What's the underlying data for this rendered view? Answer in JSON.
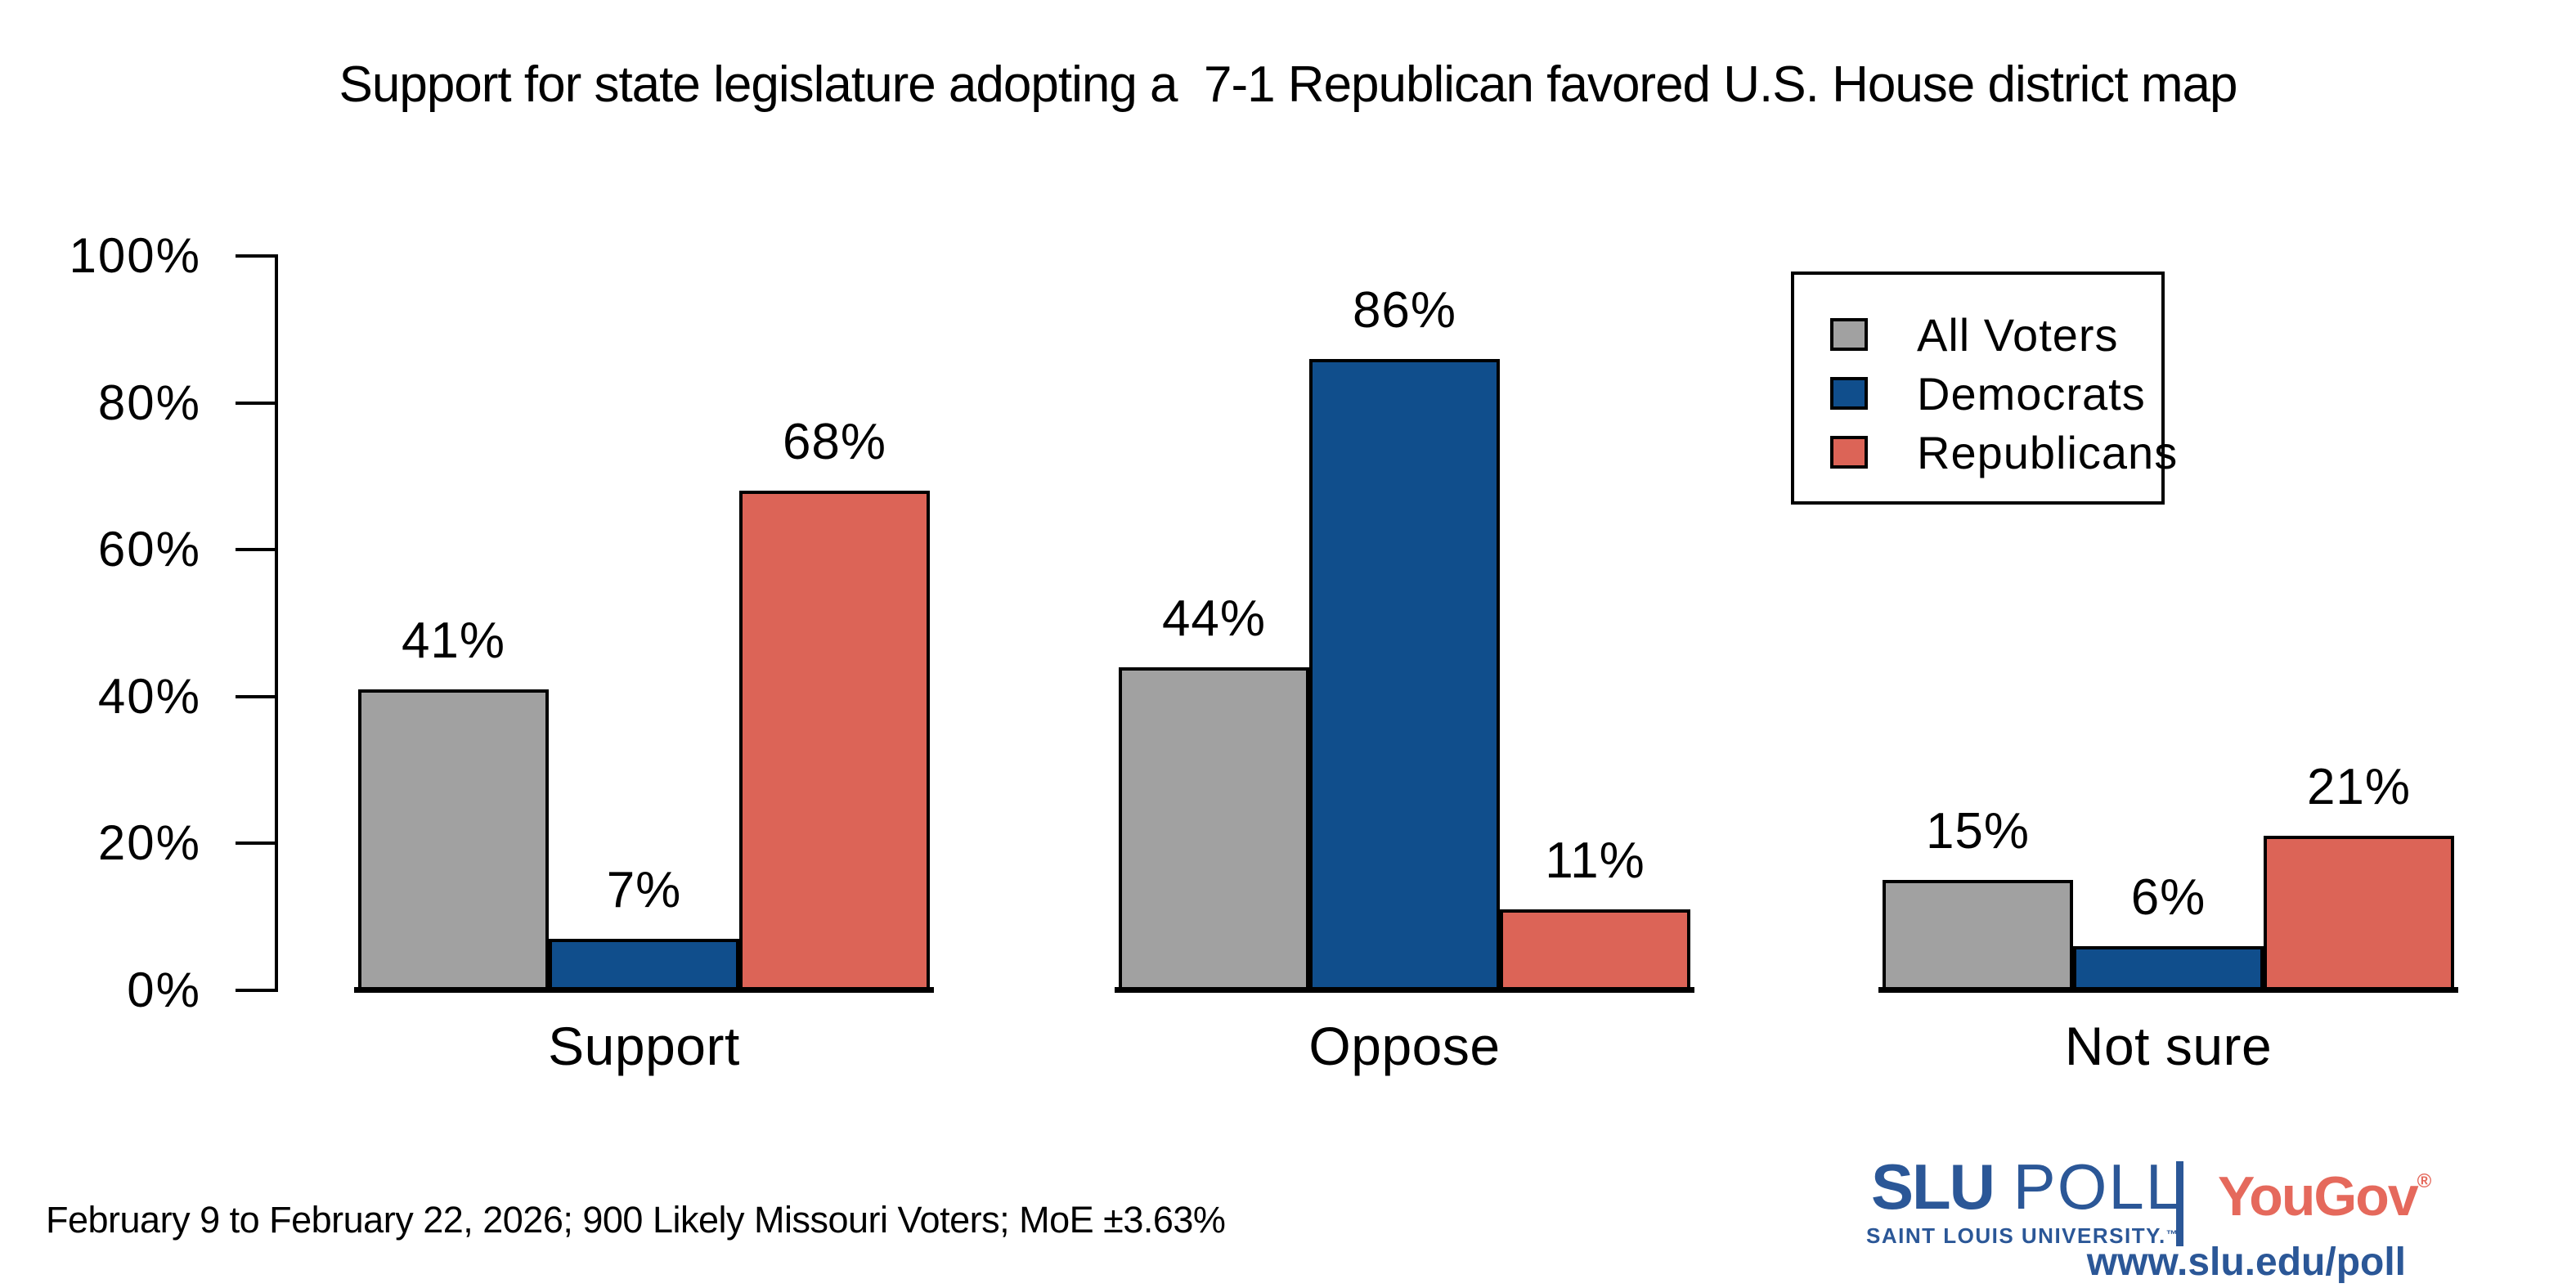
{
  "title": "Support for state legislature adopting a  7-1 Republican favored U.S. House district map",
  "footnote": "February 9 to February 22, 2026; 900 Likely Missouri Voters; MoE ±3.63%",
  "chart_data": {
    "type": "bar",
    "title": "Support for state legislature adopting a 7-1 Republican favored U.S. House district map",
    "categories": [
      "Support",
      "Oppose",
      "Not sure"
    ],
    "series": [
      {
        "name": "All Voters",
        "color": "#a1a1a1",
        "values": [
          41,
          44,
          15
        ]
      },
      {
        "name": "Democrats",
        "color": "#104e8c",
        "values": [
          7,
          86,
          6
        ]
      },
      {
        "name": "Republicans",
        "color": "#dc6457",
        "values": [
          68,
          11,
          21
        ]
      }
    ],
    "value_suffix": "%",
    "yticks": [
      0,
      20,
      40,
      60,
      80,
      100
    ],
    "ytick_suffix": "%",
    "ylim": [
      0,
      100
    ],
    "grid": false,
    "legend_position": "top-right"
  },
  "branding": {
    "slu": "SLU",
    "poll": "POLL",
    "university": "SAINT LOUIS UNIVERSITY.",
    "university_tm": "™",
    "yougov": "YouGov",
    "yougov_reg": "®",
    "url": "www.slu.edu/poll",
    "slu_blue": "#2b5797",
    "yougov_red": "#e5695c"
  }
}
